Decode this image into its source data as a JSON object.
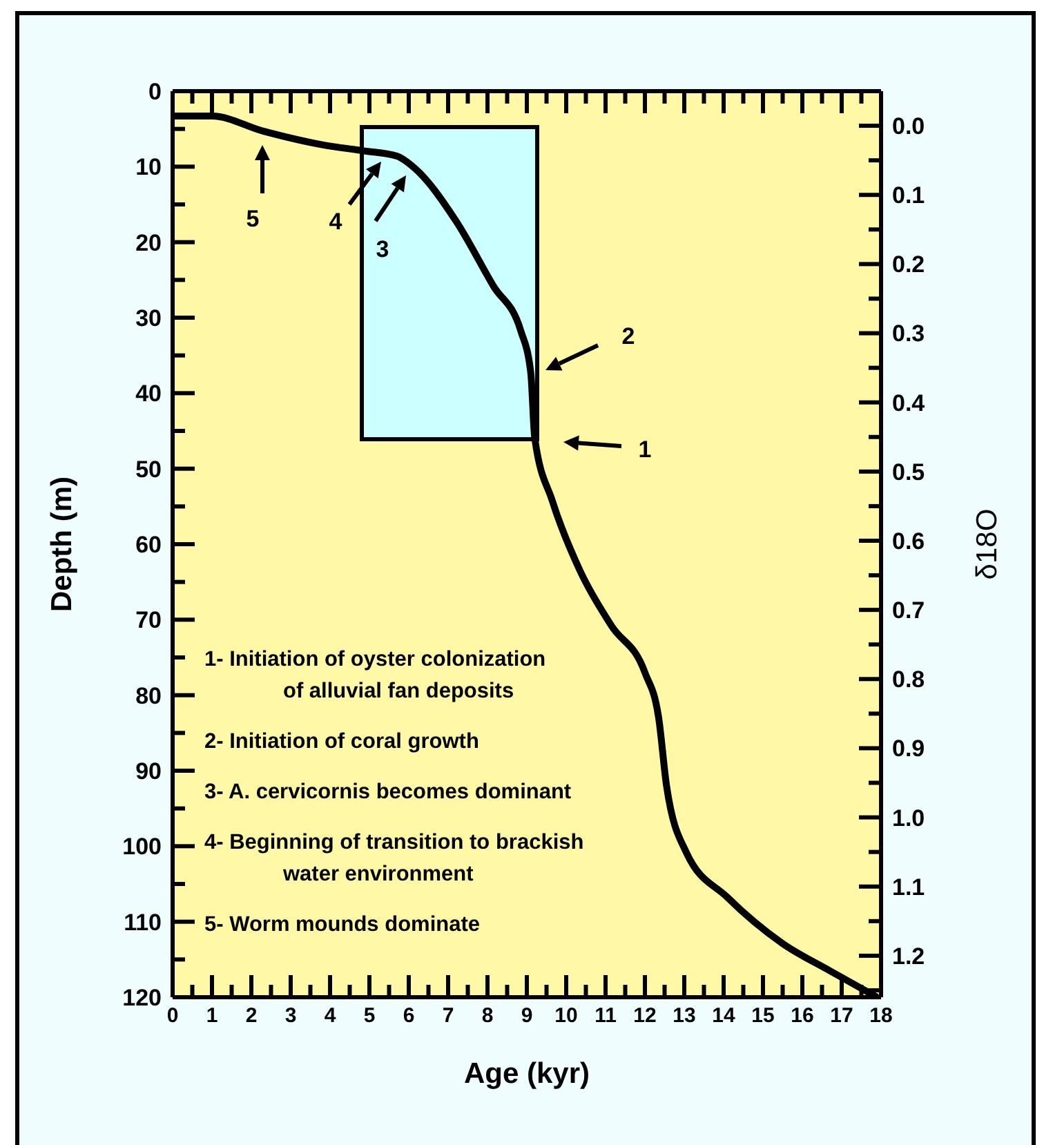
{
  "chart_data": {
    "type": "line",
    "xlabel": "Age (kyr)",
    "ylabel": "Depth (m)",
    "y2label": "δ18O",
    "xlim": [
      0,
      18
    ],
    "xticks": [
      0,
      {
        "value": 0.5,
        "label": null
      },
      1,
      {
        "value": 1.5,
        "label": null
      },
      2,
      {
        "value": 2.5,
        "label": null
      },
      3,
      {
        "value": 3.5,
        "label": null
      },
      4,
      {
        "value": 4.5,
        "label": null
      },
      5,
      {
        "value": 5.5,
        "label": null
      },
      6,
      {
        "value": 6.5,
        "label": null
      },
      7,
      {
        "value": 7.5,
        "label": null
      },
      8,
      {
        "value": 8.5,
        "label": null
      },
      9,
      {
        "value": 9.5,
        "label": null
      },
      10,
      {
        "value": 10.5,
        "label": null
      },
      11,
      {
        "value": 11.5,
        "label": null
      },
      12,
      {
        "value": 12.5,
        "label": null
      },
      13,
      {
        "value": 13.5,
        "label": null
      },
      14,
      {
        "value": 14.5,
        "label": null
      },
      15,
      {
        "value": 15.5,
        "label": null
      },
      16,
      {
        "value": 16.5,
        "label": null
      },
      17,
      {
        "value": 17.5,
        "label": null
      },
      18
    ],
    "ylim": [
      120,
      0
    ],
    "yticks": [
      0,
      {
        "value": 5,
        "label": null
      },
      10,
      {
        "value": 15,
        "label": null
      },
      20,
      {
        "value": 25,
        "label": null
      },
      30,
      {
        "value": 35,
        "label": null
      },
      40,
      {
        "value": 45,
        "label": null
      },
      50,
      {
        "value": 55,
        "label": null
      },
      60,
      {
        "value": 65,
        "label": null
      },
      70,
      {
        "value": 75,
        "label": null
      },
      80,
      {
        "value": 85,
        "label": null
      },
      90,
      {
        "value": 95,
        "label": null
      },
      100,
      {
        "value": 105,
        "label": null
      },
      110,
      {
        "value": 115,
        "label": null
      },
      120
    ],
    "y2lim": [
      1.26,
      -0.05
    ],
    "y2ticks": [
      {
        "value": 0,
        "label": "0.0"
      },
      {
        "value": 0.05,
        "label": null
      },
      {
        "value": 0.1,
        "label": "0.1"
      },
      {
        "value": 0.15,
        "label": null
      },
      {
        "value": 0.2,
        "label": "0.2"
      },
      {
        "value": 0.25,
        "label": null
      },
      {
        "value": 0.3,
        "label": "0.3"
      },
      {
        "value": 0.35,
        "label": null
      },
      {
        "value": 0.4,
        "label": "0.4"
      },
      {
        "value": 0.45,
        "label": null
      },
      {
        "value": 0.5,
        "label": "0.5"
      },
      {
        "value": 0.55,
        "label": null
      },
      {
        "value": 0.6,
        "label": "0.6"
      },
      {
        "value": 0.65,
        "label": null
      },
      {
        "value": 0.7,
        "label": "0.7"
      },
      {
        "value": 0.75,
        "label": null
      },
      {
        "value": 0.8,
        "label": "0.8"
      },
      {
        "value": 0.85,
        "label": null
      },
      {
        "value": 0.9,
        "label": "0.9"
      },
      {
        "value": 0.95,
        "label": null
      },
      {
        "value": 1.0,
        "label": "1.0"
      },
      {
        "value": 1.05,
        "label": null
      },
      {
        "value": 1.1,
        "label": "1.1"
      },
      {
        "value": 1.15,
        "label": null
      },
      {
        "value": 1.2,
        "label": "1.2"
      },
      {
        "value": 1.25,
        "label": null
      }
    ],
    "series": [
      {
        "color": "#000000",
        "x": [
          0.05,
          1.0,
          2.3,
          3.8,
          4.85,
          5.7,
          6.15,
          7.2,
          8.15,
          8.85,
          9.1,
          9.2,
          9.65,
          10.35,
          11.15,
          12.0,
          12.35,
          12.55,
          13.05,
          14.1,
          15.5,
          16.7,
          17.9
        ],
        "values": [
          3.3,
          3.3,
          5.3,
          7.1,
          7.9,
          8.6,
          10.2,
          17.2,
          25.8,
          31.8,
          37.3,
          45.9,
          54.3,
          63.5,
          70.8,
          77,
          83,
          92,
          100.8,
          106.8,
          112.9,
          116.5,
          120
        ]
      }
    ],
    "annotations": [
      "1",
      "2",
      "3",
      "4",
      "5",
      "1- Initiation of oyster colonization\nof alluvial fan deposits",
      "2- Initiation of coral growth",
      "3- A. cervicornis becomes dominant",
      "4- Beginning of transition to brackish\nwater environment",
      "5- Worm mounds dominate"
    ]
  }
}
